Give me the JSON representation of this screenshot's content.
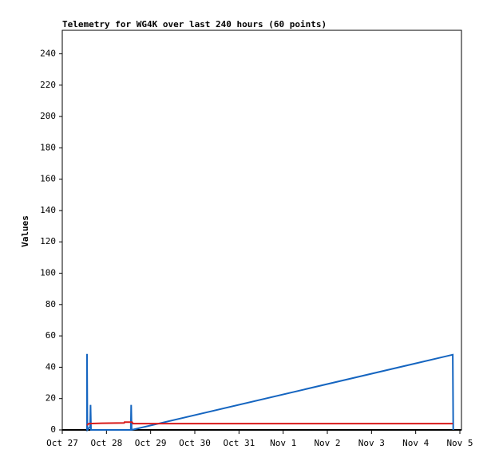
{
  "chart_data": {
    "type": "line",
    "title": "Telemetry for WG4K over last 240 hours (60 points)",
    "ylabel": "Values",
    "xlim": [
      0,
      9
    ],
    "ylim": [
      0,
      255
    ],
    "xticks": [
      {
        "value": 0,
        "label": "Oct 27"
      },
      {
        "value": 1,
        "label": "Oct 28"
      },
      {
        "value": 2,
        "label": "Oct 29"
      },
      {
        "value": 3,
        "label": "Oct 30"
      },
      {
        "value": 4,
        "label": "Oct 31"
      },
      {
        "value": 5,
        "label": "Nov 1"
      },
      {
        "value": 6,
        "label": "Nov 2"
      },
      {
        "value": 7,
        "label": "Nov 3"
      },
      {
        "value": 8,
        "label": "Nov 4"
      },
      {
        "value": 9,
        "label": "Nov 5"
      }
    ],
    "yticks": [
      0,
      20,
      40,
      60,
      80,
      100,
      120,
      140,
      160,
      180,
      200,
      220,
      240
    ],
    "series": [
      {
        "color": "#1565c0",
        "x": [
          0.56,
          0.56,
          0.57,
          0.63,
          0.64,
          0.65,
          1.55,
          1.56,
          1.57,
          8.84,
          8.85
        ],
        "values": [
          0,
          48.5,
          0,
          2,
          16,
          0,
          0,
          16,
          0,
          48,
          0
        ]
      },
      {
        "color": "#d81b1b",
        "x": [
          0.56,
          0.6,
          0.9,
          1.4,
          1.41,
          1.58,
          1.6,
          8.84
        ],
        "values": [
          3,
          4,
          4.3,
          4.5,
          5,
          5,
          4,
          4
        ]
      }
    ]
  }
}
